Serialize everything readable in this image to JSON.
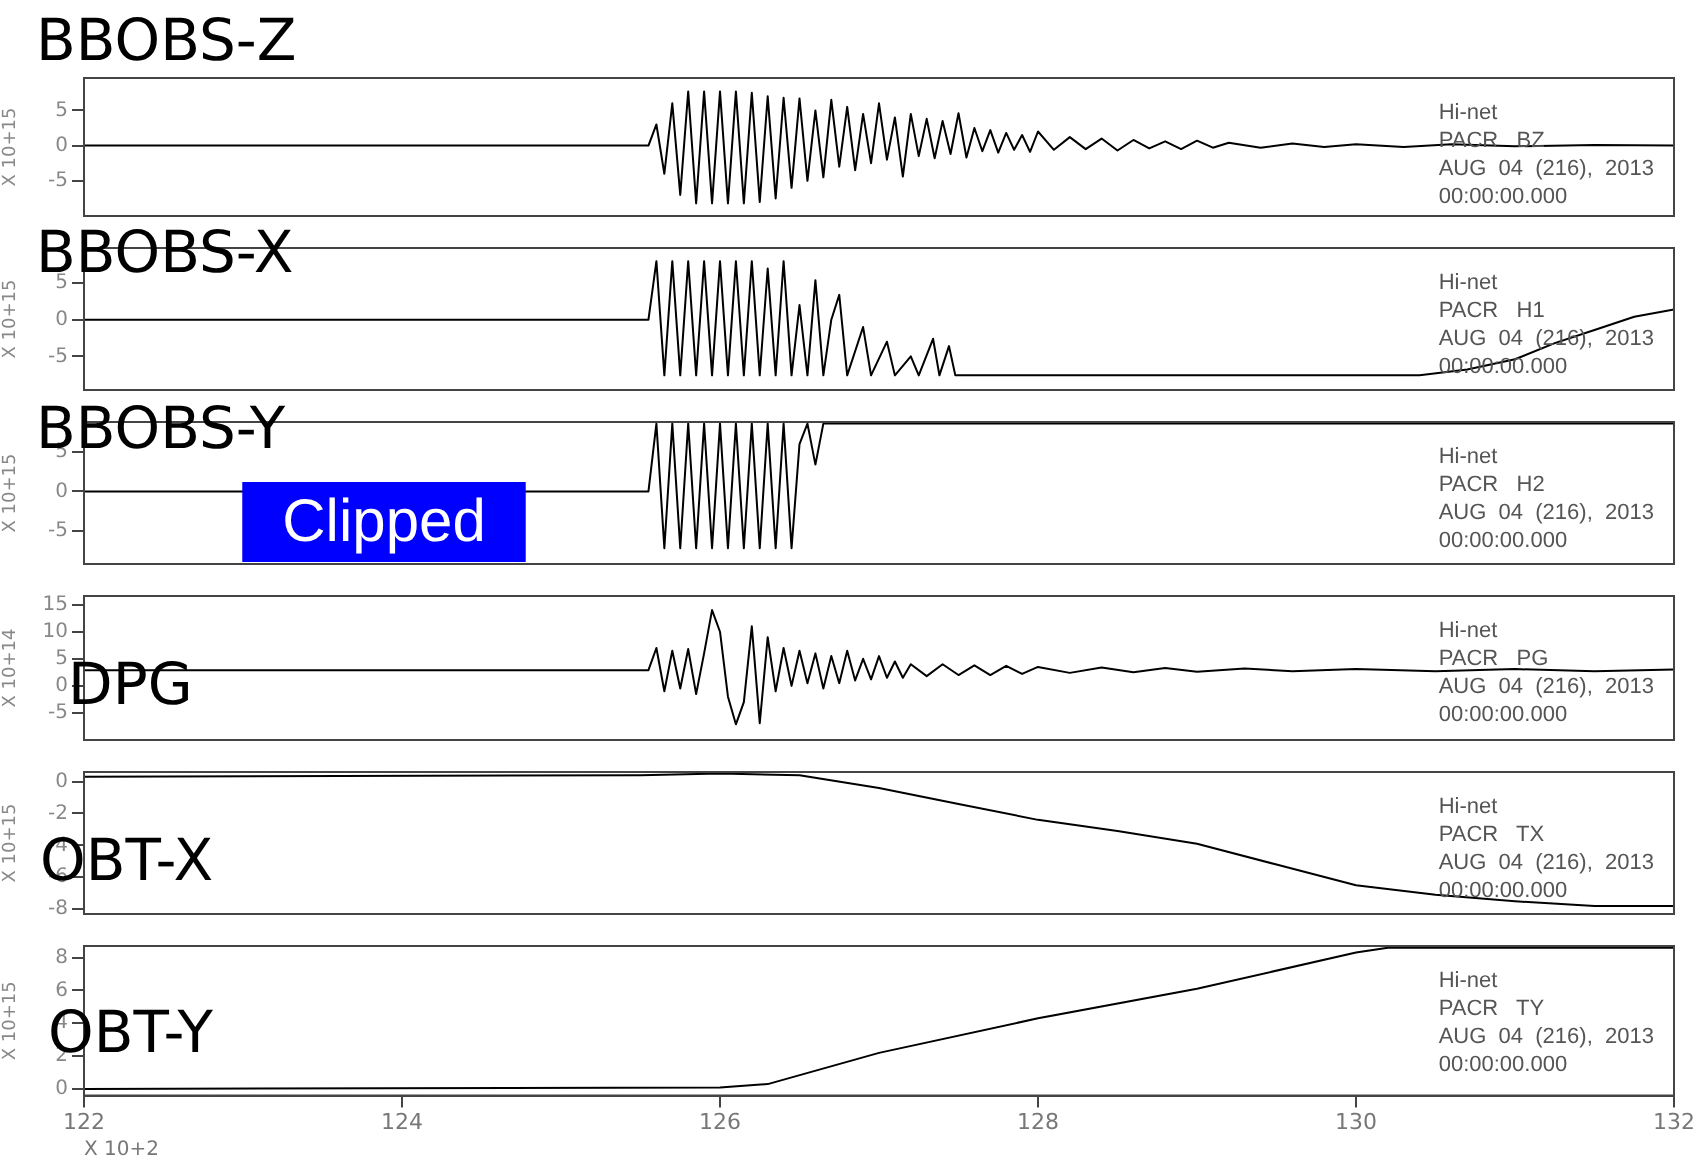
{
  "chart_data": [
    {
      "type": "line",
      "title": "BBOBS-Z",
      "ylabel": "X 10+15",
      "color": "#000000",
      "tick_labels": "y",
      "xlim": [
        122,
        132
      ],
      "xticks": [
        122,
        124,
        126,
        128,
        130,
        132
      ],
      "ylim": [
        -10,
        9.6
      ],
      "yticks": [
        -5,
        0,
        5
      ],
      "annotations": [
        "Hi-net",
        "PACR   BZ",
        "AUG  04  (216),  2013",
        "00:00:00.000"
      ],
      "x": [
        122,
        125.55,
        125.6,
        125.65,
        125.7,
        125.75,
        125.8,
        125.85,
        125.9,
        125.95,
        126,
        126.05,
        126.1,
        126.15,
        126.2,
        126.25,
        126.3,
        126.35,
        126.4,
        126.45,
        126.5,
        126.55,
        126.6,
        126.65,
        126.7,
        126.75,
        126.8,
        126.85,
        126.9,
        126.95,
        127,
        127.05,
        127.1,
        127.15,
        127.2,
        127.25,
        127.3,
        127.35,
        127.4,
        127.45,
        127.5,
        127.55,
        127.6,
        127.65,
        127.7,
        127.75,
        127.8,
        127.85,
        127.9,
        127.95,
        128,
        128.1,
        128.2,
        128.3,
        128.4,
        128.5,
        128.6,
        128.7,
        128.8,
        128.9,
        129,
        129.1,
        129.2,
        129.4,
        129.6,
        129.8,
        130,
        130.3,
        130.6,
        131,
        131.5,
        132
      ],
      "values": [
        0,
        0,
        3,
        -4,
        6,
        -7,
        7.7,
        -8.2,
        7.7,
        -8.2,
        7.7,
        -8.2,
        7.7,
        -8.2,
        7.5,
        -8,
        7,
        -7.5,
        6.8,
        -6,
        6.7,
        -5,
        5,
        -4.5,
        6.5,
        -3,
        5.5,
        -3.5,
        4.5,
        -2.5,
        6,
        -2,
        4,
        -4.4,
        4.5,
        -1.5,
        3.8,
        -1.8,
        3.5,
        -1.2,
        4.6,
        -1.7,
        2.5,
        -0.8,
        2.2,
        -1,
        1.8,
        -0.6,
        1.5,
        -0.9,
        2,
        -0.6,
        1.2,
        -0.5,
        1,
        -0.7,
        0.8,
        -0.4,
        0.6,
        -0.5,
        0.7,
        -0.3,
        0.4,
        -0.3,
        0.3,
        -0.2,
        0.2,
        -0.2,
        0.2,
        -0.1,
        0.1,
        0
      ]
    },
    {
      "type": "line",
      "title": "BBOBS-X",
      "ylabel": "X 10+15",
      "color": "#000000",
      "tick_labels": "y",
      "xlim": [
        122,
        132
      ],
      "xticks": [
        122,
        124,
        126,
        128,
        130,
        132
      ],
      "ylim": [
        -9.6,
        9.8
      ],
      "yticks": [
        -5,
        0,
        5
      ],
      "annotations": [
        "Hi-net",
        "PACR   H1",
        "AUG  04  (216),  2013",
        "00:00:00.000"
      ],
      "x": [
        122,
        125.55,
        125.6,
        125.65,
        125.7,
        125.75,
        125.8,
        125.85,
        125.9,
        125.95,
        126,
        126.05,
        126.1,
        126.15,
        126.2,
        126.25,
        126.3,
        126.35,
        126.4,
        126.45,
        126.5,
        126.55,
        126.6,
        126.65,
        126.7,
        126.75,
        126.8,
        126.9,
        126.95,
        127.05,
        127.1,
        127.2,
        127.25,
        127.34,
        127.38,
        127.44,
        127.48,
        130.4,
        130.7,
        131,
        131.25,
        131.5,
        131.75,
        132
      ],
      "values": [
        0,
        0,
        8,
        -7.6,
        8,
        -7.6,
        8,
        -7.6,
        8,
        -7.6,
        8,
        -7.6,
        8,
        -7.6,
        8,
        -7.6,
        7,
        -7.6,
        8,
        -7.6,
        2,
        -7.6,
        5.4,
        -7.6,
        0,
        3.4,
        -7.6,
        -1,
        -7.6,
        -3,
        -7.6,
        -5,
        -7.6,
        -2.6,
        -7.6,
        -3.6,
        -7.6,
        -7.6,
        -6.8,
        -5.4,
        -3.2,
        -1.4,
        0.4,
        1.4
      ]
    },
    {
      "type": "line",
      "title": "BBOBS-Y",
      "ylabel": "X 10+15",
      "color": "#000000",
      "tick_labels": "y",
      "xlim": [
        122,
        132
      ],
      "xticks": [
        122,
        124,
        126,
        128,
        130,
        132
      ],
      "ylim": [
        -9.2,
        8.8
      ],
      "yticks": [
        -5,
        0,
        5
      ],
      "annotations": [
        "Clipped",
        "Hi-net",
        "PACR   H2",
        "AUG  04  (216),  2013",
        "00:00:00.000"
      ],
      "x": [
        122,
        125.55,
        125.6,
        125.65,
        125.7,
        125.75,
        125.8,
        125.85,
        125.9,
        125.95,
        126,
        126.05,
        126.1,
        126.15,
        126.2,
        126.25,
        126.3,
        126.35,
        126.4,
        126.45,
        126.5,
        126.55,
        126.6,
        126.65,
        132
      ],
      "values": [
        0,
        0,
        8.6,
        -7.2,
        8.6,
        -7.2,
        8.6,
        -7.2,
        8.6,
        -7.2,
        8.6,
        -7.2,
        8.6,
        -7.2,
        8.6,
        -7.2,
        8.6,
        -7.2,
        8.6,
        -7.2,
        6,
        8.6,
        3.4,
        8.6,
        8.6
      ]
    },
    {
      "type": "line",
      "title": "DPG",
      "ylabel": "X 10+14",
      "color": "#000000",
      "tick_labels": "y",
      "xlim": [
        122,
        132
      ],
      "xticks": [
        122,
        124,
        126,
        128,
        130,
        132
      ],
      "ylim": [
        -10,
        16.6
      ],
      "yticks": [
        -5,
        0,
        5,
        10,
        15
      ],
      "annotations": [
        "Hi-net",
        "PACR   PG",
        "AUG  04  (216),  2013",
        "00:00:00.000"
      ],
      "x": [
        122,
        125.55,
        125.6,
        125.65,
        125.7,
        125.75,
        125.8,
        125.85,
        125.9,
        125.95,
        126,
        126.05,
        126.1,
        126.15,
        126.2,
        126.25,
        126.3,
        126.35,
        126.4,
        126.45,
        126.5,
        126.55,
        126.6,
        126.65,
        126.7,
        126.75,
        126.8,
        126.85,
        126.9,
        126.95,
        127,
        127.05,
        127.1,
        127.15,
        127.2,
        127.3,
        127.4,
        127.5,
        127.6,
        127.7,
        127.8,
        127.9,
        128,
        128.2,
        128.4,
        128.6,
        128.8,
        129,
        129.3,
        129.6,
        130,
        130.5,
        131,
        131.5,
        132
      ],
      "values": [
        2.9,
        2.9,
        7,
        -1,
        6.5,
        -0.5,
        6.8,
        -1.5,
        6,
        14,
        10,
        -2,
        -7.1,
        -3,
        11,
        -6.9,
        9,
        -1,
        7,
        0,
        6.5,
        0.5,
        6,
        -0.5,
        5.5,
        0.5,
        6.5,
        1,
        5,
        1.2,
        5.5,
        1.5,
        4.5,
        1.5,
        4,
        1.8,
        4,
        2,
        3.8,
        2,
        3.7,
        2.2,
        3.5,
        2.4,
        3.4,
        2.5,
        3.3,
        2.6,
        3.2,
        2.7,
        3.1,
        2.7,
        3.1,
        2.7,
        3
      ]
    },
    {
      "type": "line",
      "title": "OBT-X",
      "ylabel": "X 10+15",
      "color": "#000000",
      "tick_labels": "y",
      "xlim": [
        122,
        132
      ],
      "xticks": [
        122,
        124,
        126,
        128,
        130,
        132
      ],
      "ylim": [
        -8.3,
        0.6
      ],
      "yticks": [
        -8,
        -6,
        -4,
        -2,
        0
      ],
      "annotations": [
        "Hi-net",
        "PACR   TX",
        "AUG  04  (216),  2013",
        "00:00:00.000"
      ],
      "x": [
        122,
        125.5,
        126,
        126.5,
        127,
        127.5,
        128,
        128.5,
        129,
        129.5,
        130,
        130.5,
        131,
        131.5,
        132
      ],
      "values": [
        0.3,
        0.4,
        0.5,
        0.4,
        -0.4,
        -1.4,
        -2.4,
        -3.1,
        -3.9,
        -5.2,
        -6.5,
        -7.1,
        -7.5,
        -7.8,
        -7.8
      ]
    },
    {
      "type": "line",
      "title": "OBT-Y",
      "ylabel": "X 10+15",
      "xlabel": "X 10+2",
      "color": "#000000",
      "xlim": [
        122,
        132
      ],
      "xticks": [
        122,
        124,
        126,
        128,
        130,
        132
      ],
      "ylim": [
        -0.4,
        8.7
      ],
      "yticks": [
        0,
        2,
        4,
        6,
        8
      ],
      "annotations": [
        "Hi-net",
        "PACR   TY",
        "AUG  04  (216),  2013",
        "00:00:00.000"
      ],
      "x": [
        122,
        126,
        126.3,
        127,
        128,
        129,
        130,
        130.2,
        132
      ],
      "values": [
        0,
        0.1,
        0.3,
        2.2,
        4.3,
        6.1,
        8.3,
        8.6,
        8.6
      ]
    }
  ]
}
